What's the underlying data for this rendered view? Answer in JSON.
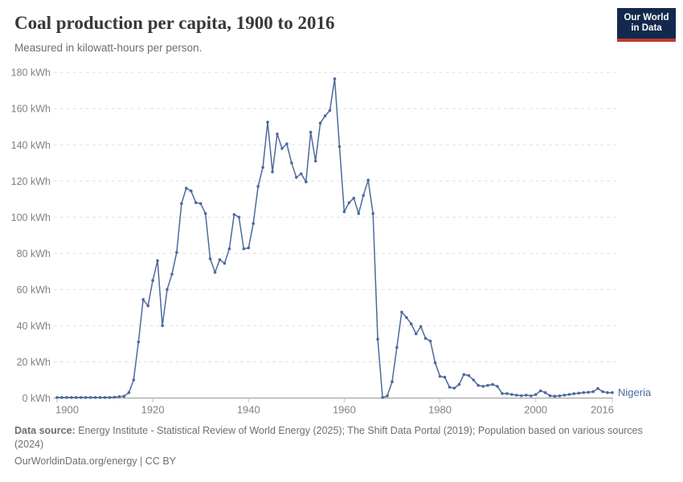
{
  "header": {
    "title": "Coal production per capita, 1900 to 2016",
    "subtitle": "Measured in kilowatt-hours per person."
  },
  "logo": {
    "line1": "Our World",
    "line2": "in Data"
  },
  "colors": {
    "line": "#4C6A9C",
    "grid": "#e0e0e0",
    "axis_line": "#999999",
    "tick_mark": "#c4c4c4",
    "tick_label": "#818181",
    "title_text": "#383838",
    "subtitle_text": "#6e6e6e",
    "footer_text": "#6e6e6e",
    "logo_bg": "#12294d",
    "logo_accent": "#bd3a32"
  },
  "chart_data": {
    "type": "line",
    "title": "Coal production per capita, 1900 to 2016",
    "subtitle": "Measured in kilowatt-hours per person.",
    "xlabel": "",
    "ylabel": "kilowatt-hours per person",
    "xlim": [
      1900,
      2016
    ],
    "ylim": [
      0,
      180
    ],
    "grid": true,
    "legend_position": "right-of-last-point",
    "x_ticks": [
      1900,
      1920,
      1940,
      1960,
      1980,
      2000,
      2016
    ],
    "y_ticks": [
      0,
      20,
      40,
      60,
      80,
      100,
      120,
      140,
      160,
      180
    ],
    "y_tick_suffix": " kWh",
    "entity_label": "Nigeria",
    "series": [
      {
        "name": "Nigeria",
        "color": "#4C6A9C",
        "x": [
          1900,
          1901,
          1902,
          1903,
          1904,
          1905,
          1906,
          1907,
          1908,
          1909,
          1910,
          1911,
          1912,
          1913,
          1914,
          1915,
          1916,
          1917,
          1918,
          1919,
          1920,
          1921,
          1922,
          1923,
          1924,
          1925,
          1926,
          1927,
          1928,
          1929,
          1930,
          1931,
          1932,
          1933,
          1934,
          1935,
          1936,
          1937,
          1938,
          1939,
          1940,
          1941,
          1942,
          1943,
          1944,
          1945,
          1946,
          1947,
          1948,
          1949,
          1950,
          1951,
          1952,
          1953,
          1954,
          1955,
          1956,
          1957,
          1958,
          1959,
          1960,
          1961,
          1962,
          1963,
          1964,
          1965,
          1966,
          1967,
          1968,
          1969,
          1970,
          1971,
          1972,
          1973,
          1974,
          1975,
          1976,
          1977,
          1978,
          1979,
          1980,
          1981,
          1982,
          1983,
          1984,
          1985,
          1986,
          1987,
          1988,
          1989,
          1990,
          1991,
          1992,
          1993,
          1994,
          1995,
          1996,
          1997,
          1998,
          1999,
          2000,
          2001,
          2002,
          2003,
          2004,
          2005,
          2006,
          2007,
          2008,
          2009,
          2010,
          2011,
          2012,
          2013,
          2014,
          2015,
          2016
        ],
        "values": [
          0.3,
          0.3,
          0.3,
          0.3,
          0.3,
          0.3,
          0.3,
          0.3,
          0.3,
          0.3,
          0.3,
          0.3,
          0.5,
          0.8,
          1.0,
          3,
          10,
          31,
          54.5,
          51,
          65,
          76,
          40,
          60,
          68.5,
          80.5,
          107.5,
          116,
          114.5,
          108,
          107.5,
          102,
          77,
          69.5,
          76.5,
          74.5,
          82.5,
          101.5,
          100,
          82.5,
          83,
          96.5,
          117,
          127.5,
          152.5,
          125,
          146,
          138,
          140.5,
          130,
          122,
          124,
          119.5,
          147,
          131,
          152,
          156,
          159,
          176.5,
          139,
          103,
          108,
          110.5,
          102,
          112,
          120.5,
          102,
          32.5,
          0.3,
          1.2,
          9,
          28,
          47.5,
          44.5,
          41,
          35.5,
          39.5,
          33,
          31.5,
          19.5,
          12,
          11.5,
          6,
          5.5,
          7.5,
          13,
          12.5,
          10,
          7,
          6.5,
          7,
          7.5,
          6.5,
          2.5,
          2.5,
          2,
          1.6,
          1.3,
          1.6,
          1.2,
          1.9,
          4,
          3,
          1.3,
          1,
          1.2,
          1.6,
          2,
          2.4,
          2.7,
          3,
          3.2,
          3.5,
          5.3,
          3.5,
          3,
          3
        ]
      }
    ]
  },
  "footer": {
    "datasource_label": "Data source:",
    "datasource_text": " Energy Institute - Statistical Review of World Energy (2025); The Shift Data Portal (2019); Population based on various sources (2024)",
    "link_text": "OurWorldinData.org/energy | CC BY"
  }
}
